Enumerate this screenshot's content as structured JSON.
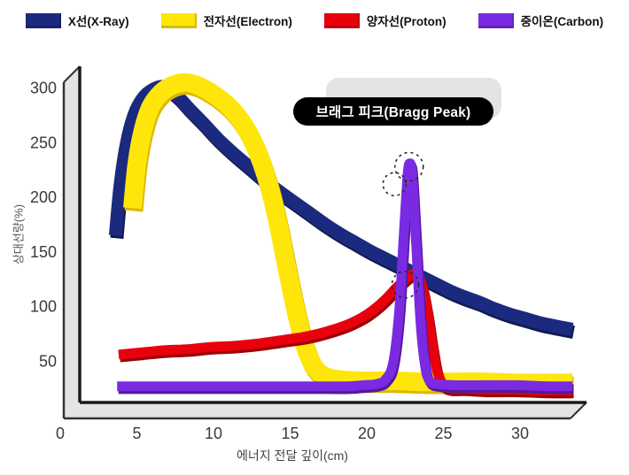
{
  "legend": {
    "items": [
      {
        "label": "X선(X-Ray)",
        "color": "#1b2a7e"
      },
      {
        "label": "전자선(Electron)",
        "color": "#ffe60a"
      },
      {
        "label": "양자선(Proton)",
        "color": "#e8000d"
      },
      {
        "label": "중이온(Carbon)",
        "color": "#7a2be2"
      }
    ]
  },
  "annotation": {
    "bragg_label": "브래그 피크(Bragg Peak)"
  },
  "axes": {
    "x_title": "에너지 전달 깊이(cm)",
    "y_title": "상대선량(%)",
    "x_ticks": [
      0,
      5,
      10,
      15,
      20,
      25,
      30
    ],
    "y_ticks": [
      50,
      100,
      150,
      200,
      250,
      300
    ]
  },
  "chart_data": {
    "type": "line",
    "title": "",
    "xlabel": "에너지 전달 깊이(cm)",
    "ylabel": "상대선량(%)",
    "xlim": [
      0,
      33
    ],
    "ylim": [
      0,
      320
    ],
    "grid": false,
    "legend_position": "top",
    "series": [
      {
        "key": "xray",
        "name": "X선(X-Ray)",
        "color": "#1b2a7e",
        "edge": "#101a52",
        "width": 15,
        "points": [
          [
            2.8,
            165
          ],
          [
            3.1,
            210
          ],
          [
            3.5,
            248
          ],
          [
            4.0,
            275
          ],
          [
            4.6,
            291
          ],
          [
            5.3,
            299
          ],
          [
            6.0,
            301
          ],
          [
            6.8,
            293
          ],
          [
            7.6,
            281
          ],
          [
            8.5,
            268
          ],
          [
            9.5,
            253
          ],
          [
            10.5,
            240
          ],
          [
            11.5,
            228
          ],
          [
            12.5,
            216
          ],
          [
            13.5,
            205
          ],
          [
            14.5,
            195
          ],
          [
            15.5,
            185
          ],
          [
            16.5,
            175
          ],
          [
            17.5,
            166
          ],
          [
            18.5,
            158
          ],
          [
            19.5,
            150
          ],
          [
            20.5,
            143
          ],
          [
            21.5,
            136
          ],
          [
            22.5,
            129
          ],
          [
            23.5,
            122
          ],
          [
            24.5,
            115
          ],
          [
            25.5,
            109
          ],
          [
            26.5,
            104
          ],
          [
            27.5,
            98
          ],
          [
            28.5,
            93
          ],
          [
            29.5,
            89
          ],
          [
            30.5,
            85
          ],
          [
            31.5,
            82
          ],
          [
            32.6,
            79
          ]
        ]
      },
      {
        "key": "electron",
        "name": "전자선(Electron)",
        "color": "#ffe60a",
        "edge": "#dcb700",
        "width": 21,
        "points": [
          [
            3.9,
            190
          ],
          [
            4.2,
            232
          ],
          [
            4.6,
            262
          ],
          [
            5.1,
            283
          ],
          [
            5.8,
            296
          ],
          [
            6.6,
            303
          ],
          [
            7.4,
            305
          ],
          [
            8.2,
            302
          ],
          [
            9.0,
            296
          ],
          [
            9.8,
            288
          ],
          [
            10.6,
            277
          ],
          [
            11.4,
            261
          ],
          [
            12.1,
            240
          ],
          [
            12.8,
            211
          ],
          [
            13.4,
            176
          ],
          [
            14.0,
            134
          ],
          [
            14.6,
            94
          ],
          [
            15.2,
            62
          ],
          [
            15.8,
            44
          ],
          [
            16.5,
            36
          ],
          [
            17.5,
            33
          ],
          [
            19,
            32
          ],
          [
            21,
            32
          ],
          [
            23,
            31
          ],
          [
            25,
            31
          ],
          [
            27,
            31
          ],
          [
            29,
            30
          ],
          [
            31,
            30
          ],
          [
            32.6,
            30
          ]
        ]
      },
      {
        "key": "proton",
        "name": "양자선(Proton)",
        "color": "#e8000d",
        "edge": "#9c0008",
        "width": 11,
        "points": [
          [
            3.0,
            56
          ],
          [
            4.5,
            58
          ],
          [
            6,
            60
          ],
          [
            7.5,
            61
          ],
          [
            9,
            63
          ],
          [
            10.5,
            64
          ],
          [
            12,
            66
          ],
          [
            13.5,
            69
          ],
          [
            15,
            72
          ],
          [
            16,
            75
          ],
          [
            17,
            79
          ],
          [
            18,
            84
          ],
          [
            19,
            91
          ],
          [
            19.8,
            99
          ],
          [
            20.5,
            108
          ],
          [
            21.1,
            117
          ],
          [
            21.7,
            125
          ],
          [
            22.2,
            130
          ],
          [
            22.6,
            127
          ],
          [
            22.9,
            113
          ],
          [
            23.2,
            90
          ],
          [
            23.5,
            62
          ],
          [
            23.8,
            40
          ],
          [
            24.2,
            28
          ],
          [
            24.7,
            25
          ],
          [
            25.5,
            25
          ],
          [
            27,
            24
          ],
          [
            29,
            24
          ],
          [
            31,
            23
          ],
          [
            32.6,
            23
          ]
        ]
      },
      {
        "key": "carbon",
        "name": "중이온(Carbon)",
        "color": "#7a2be2",
        "edge": "#55179e",
        "width": 11,
        "points": [
          [
            2.9,
            27
          ],
          [
            5,
            27
          ],
          [
            7,
            27
          ],
          [
            9,
            27
          ],
          [
            11,
            27
          ],
          [
            13,
            27
          ],
          [
            15,
            27
          ],
          [
            16.5,
            27
          ],
          [
            18,
            27
          ],
          [
            19,
            28
          ],
          [
            19.8,
            29
          ],
          [
            20.4,
            33
          ],
          [
            20.9,
            48
          ],
          [
            21.3,
            95
          ],
          [
            21.6,
            165
          ],
          [
            21.85,
            220
          ],
          [
            22.0,
            231
          ],
          [
            22.15,
            220
          ],
          [
            22.4,
            160
          ],
          [
            22.7,
            85
          ],
          [
            23.0,
            45
          ],
          [
            23.3,
            32
          ],
          [
            23.8,
            29
          ],
          [
            25,
            28
          ],
          [
            27,
            28
          ],
          [
            29,
            28
          ],
          [
            31,
            27
          ],
          [
            32.6,
            27
          ]
        ]
      }
    ],
    "annotations": {
      "bragg_peak_label": "브래그 피크(Bragg Peak)",
      "dotted_circles": [
        {
          "x": 21.95,
          "y": 228,
          "r": 16
        },
        {
          "x": 21.0,
          "y": 212,
          "r": 13
        },
        {
          "x": 21.7,
          "y": 120,
          "r": 15
        }
      ]
    }
  }
}
